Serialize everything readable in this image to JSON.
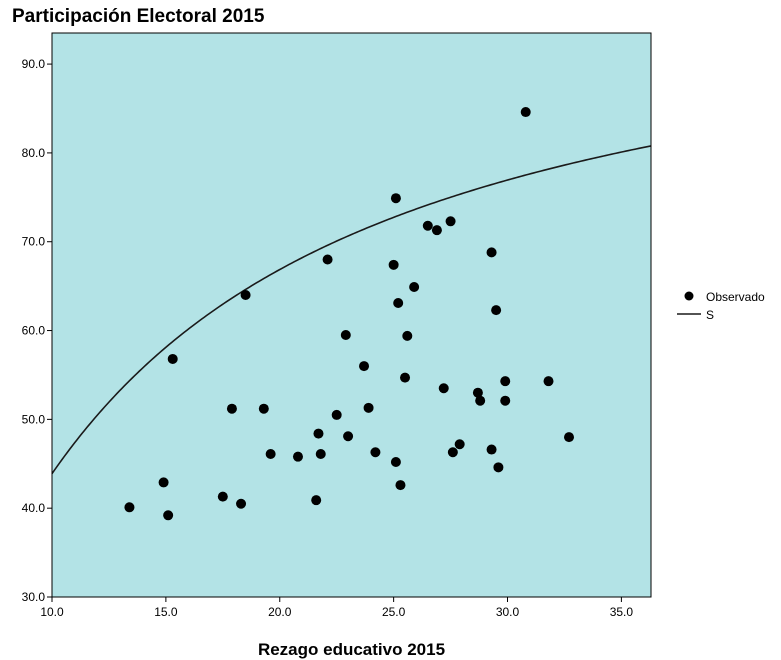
{
  "chart_data": {
    "type": "scatter",
    "title": "Participación Electoral 2015",
    "xlabel": "Rezago educativo 2015",
    "ylabel": "",
    "xlim": [
      10,
      36.3
    ],
    "ylim": [
      30,
      93.5
    ],
    "x_ticks": [
      "10.0",
      "15.0",
      "20.0",
      "25.0",
      "30.0",
      "35.0"
    ],
    "y_ticks": [
      "30.0",
      "40.0",
      "50.0",
      "60.0",
      "70.0",
      "80.0",
      "90.0"
    ],
    "grid": false,
    "background_color": "#b3e3e6",
    "legend": {
      "placement": "right",
      "entries": [
        {
          "label": "Observado",
          "marker": "dot"
        },
        {
          "label": "S",
          "marker": "line"
        }
      ]
    },
    "series": [
      {
        "name": "Observado",
        "kind": "scatter",
        "color": "#000000",
        "points": [
          [
            13.4,
            40.1
          ],
          [
            14.9,
            42.9
          ],
          [
            15.1,
            39.2
          ],
          [
            15.3,
            56.8
          ],
          [
            17.5,
            41.3
          ],
          [
            17.9,
            51.2
          ],
          [
            18.3,
            40.5
          ],
          [
            18.5,
            64.0
          ],
          [
            19.3,
            51.2
          ],
          [
            19.6,
            46.1
          ],
          [
            20.8,
            45.8
          ],
          [
            21.6,
            40.9
          ],
          [
            21.7,
            48.4
          ],
          [
            21.8,
            46.1
          ],
          [
            22.1,
            68.0
          ],
          [
            22.5,
            50.5
          ],
          [
            22.9,
            59.5
          ],
          [
            23.0,
            48.1
          ],
          [
            23.7,
            56.0
          ],
          [
            23.9,
            51.3
          ],
          [
            24.2,
            46.3
          ],
          [
            25.0,
            67.4
          ],
          [
            25.1,
            74.9
          ],
          [
            25.1,
            45.2
          ],
          [
            25.2,
            63.1
          ],
          [
            25.3,
            42.6
          ],
          [
            25.5,
            54.7
          ],
          [
            25.6,
            59.4
          ],
          [
            25.9,
            64.9
          ],
          [
            26.5,
            71.8
          ],
          [
            26.9,
            71.3
          ],
          [
            27.2,
            53.5
          ],
          [
            27.5,
            72.3
          ],
          [
            27.6,
            46.3
          ],
          [
            27.9,
            47.2
          ],
          [
            28.7,
            53.0
          ],
          [
            28.8,
            52.1
          ],
          [
            29.3,
            68.8
          ],
          [
            29.3,
            46.6
          ],
          [
            29.5,
            62.3
          ],
          [
            29.6,
            44.6
          ],
          [
            29.9,
            54.3
          ],
          [
            29.9,
            52.1
          ],
          [
            30.8,
            84.6
          ],
          [
            31.8,
            54.3
          ],
          [
            32.7,
            48.0
          ]
        ]
      },
      {
        "name": "S",
        "kind": "curve",
        "color": "#1a1a1a",
        "model": "S",
        "b0": 4.6238,
        "b1": -8.4213
      }
    ]
  }
}
